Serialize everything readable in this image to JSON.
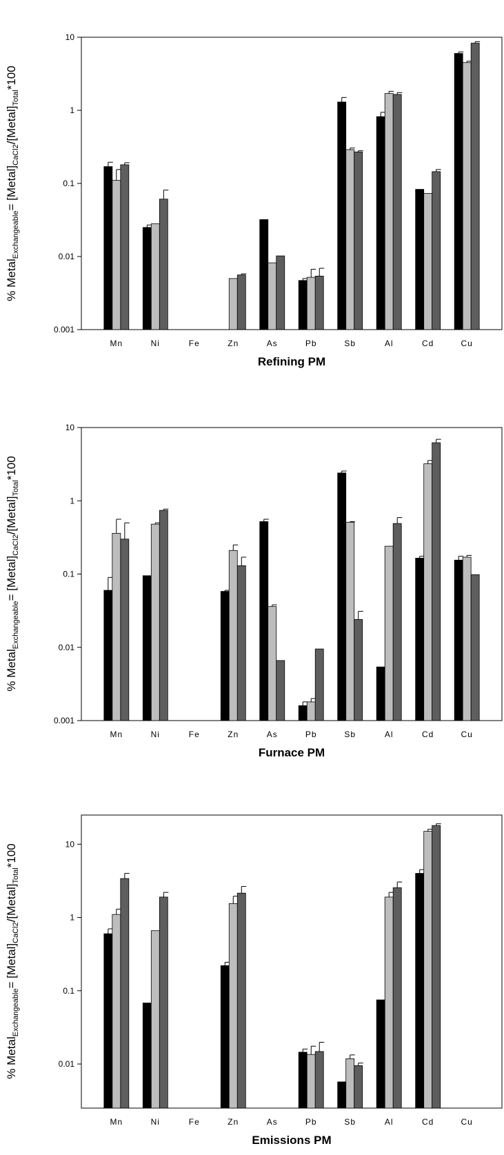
{
  "colors": {
    "series1": "#000000",
    "series2": "#bdbdbd",
    "series3": "#5e5e5e",
    "frame": "#000000"
  },
  "ylabel_parts": {
    "prefix": "% Metal",
    "sub1": "Exchangeable",
    "mid": "= [Metal]",
    "sub2": "CaCl",
    "sub3": "2",
    "mid2": "/[Metal]",
    "sub4": "Total",
    "suffix": "*100"
  },
  "chart_data": [
    {
      "type": "bar",
      "title": "Refining PM",
      "categories": [
        "Mn",
        "Ni",
        "Fe",
        "Zn",
        "As",
        "Pb",
        "Sb",
        "Al",
        "Cd",
        "Cu"
      ],
      "yscale": "log",
      "ylim": [
        0.001,
        10
      ],
      "yticks": [
        "0.001",
        "0.01",
        "0.1",
        "1",
        "10"
      ],
      "grid": false,
      "series": [
        {
          "values": [
            0.17,
            0.025,
            null,
            null,
            0.032,
            0.0047,
            1.3,
            0.82,
            0.083,
            6.0
          ],
          "errors": [
            0.025,
            0.002,
            null,
            null,
            null,
            0.0003,
            0.2,
            0.12,
            null,
            0.3
          ]
        },
        {
          "values": [
            0.11,
            0.028,
            null,
            0.005,
            0.0082,
            0.0052,
            0.29,
            1.7,
            0.073,
            4.5
          ],
          "errors": [
            0.045,
            null,
            null,
            null,
            null,
            0.0015,
            0.015,
            0.12,
            null,
            0.2
          ]
        },
        {
          "values": [
            0.18,
            0.061,
            null,
            0.0056,
            0.0102,
            0.0054,
            0.27,
            1.65,
            0.145,
            8.3
          ],
          "errors": [
            0.012,
            0.02,
            null,
            0.0002,
            null,
            0.0015,
            0.01,
            0.1,
            0.01,
            0.4
          ]
        }
      ]
    },
    {
      "type": "bar",
      "title": "Furnace PM",
      "categories": [
        "Mn",
        "Ni",
        "Fe",
        "Zn",
        "As",
        "Pb",
        "Sb",
        "Al",
        "Cd",
        "Cu"
      ],
      "yscale": "log",
      "ylim": [
        0.001,
        10
      ],
      "yticks": [
        "0.001",
        "0.01",
        "0.1",
        "1",
        "10"
      ],
      "grid": false,
      "series": [
        {
          "values": [
            0.06,
            0.095,
            null,
            0.058,
            0.52,
            0.0016,
            2.4,
            0.0054,
            0.165,
            0.155
          ],
          "errors": [
            0.03,
            null,
            null,
            0.002,
            0.04,
            0.0002,
            0.15,
            null,
            0.01,
            0.02
          ]
        },
        {
          "values": [
            0.36,
            0.48,
            null,
            0.21,
            0.036,
            0.0018,
            0.51,
            0.24,
            3.2,
            0.17
          ],
          "errors": [
            0.2,
            0.02,
            null,
            0.04,
            0.002,
            0.0002,
            0.01,
            null,
            0.35,
            0.01
          ]
        },
        {
          "values": [
            0.3,
            0.74,
            null,
            0.13,
            0.0066,
            0.0095,
            0.024,
            0.49,
            6.2,
            0.098
          ],
          "errors": [
            0.2,
            0.03,
            null,
            0.04,
            null,
            null,
            0.007,
            0.1,
            0.7,
            null
          ]
        }
      ]
    },
    {
      "type": "bar",
      "title": "Emissions PM",
      "categories": [
        "Mn",
        "Ni",
        "Fe",
        "Zn",
        "As",
        "Pb",
        "Sb",
        "Al",
        "Cd",
        "Cu"
      ],
      "yscale": "log",
      "ylim": [
        0.0025,
        25
      ],
      "yticks": [
        "0.01",
        "0.1",
        "1",
        "10"
      ],
      "grid": false,
      "series": [
        {
          "values": [
            0.6,
            0.068,
            null,
            0.22,
            null,
            0.0145,
            0.0057,
            0.075,
            4.0,
            null
          ],
          "errors": [
            0.1,
            null,
            null,
            0.025,
            null,
            0.0015,
            null,
            null,
            0.5,
            null
          ]
        },
        {
          "values": [
            1.1,
            0.66,
            null,
            1.55,
            null,
            0.0135,
            0.0118,
            1.9,
            15.0,
            null
          ],
          "errors": [
            0.2,
            null,
            null,
            0.4,
            null,
            0.004,
            0.0015,
            0.3,
            1.0,
            null
          ]
        },
        {
          "values": [
            3.4,
            1.9,
            null,
            2.15,
            null,
            0.0148,
            0.0095,
            2.55,
            18.0,
            null
          ],
          "errors": [
            0.6,
            0.3,
            null,
            0.5,
            null,
            0.005,
            0.0008,
            0.5,
            1.0,
            null
          ]
        }
      ]
    }
  ]
}
